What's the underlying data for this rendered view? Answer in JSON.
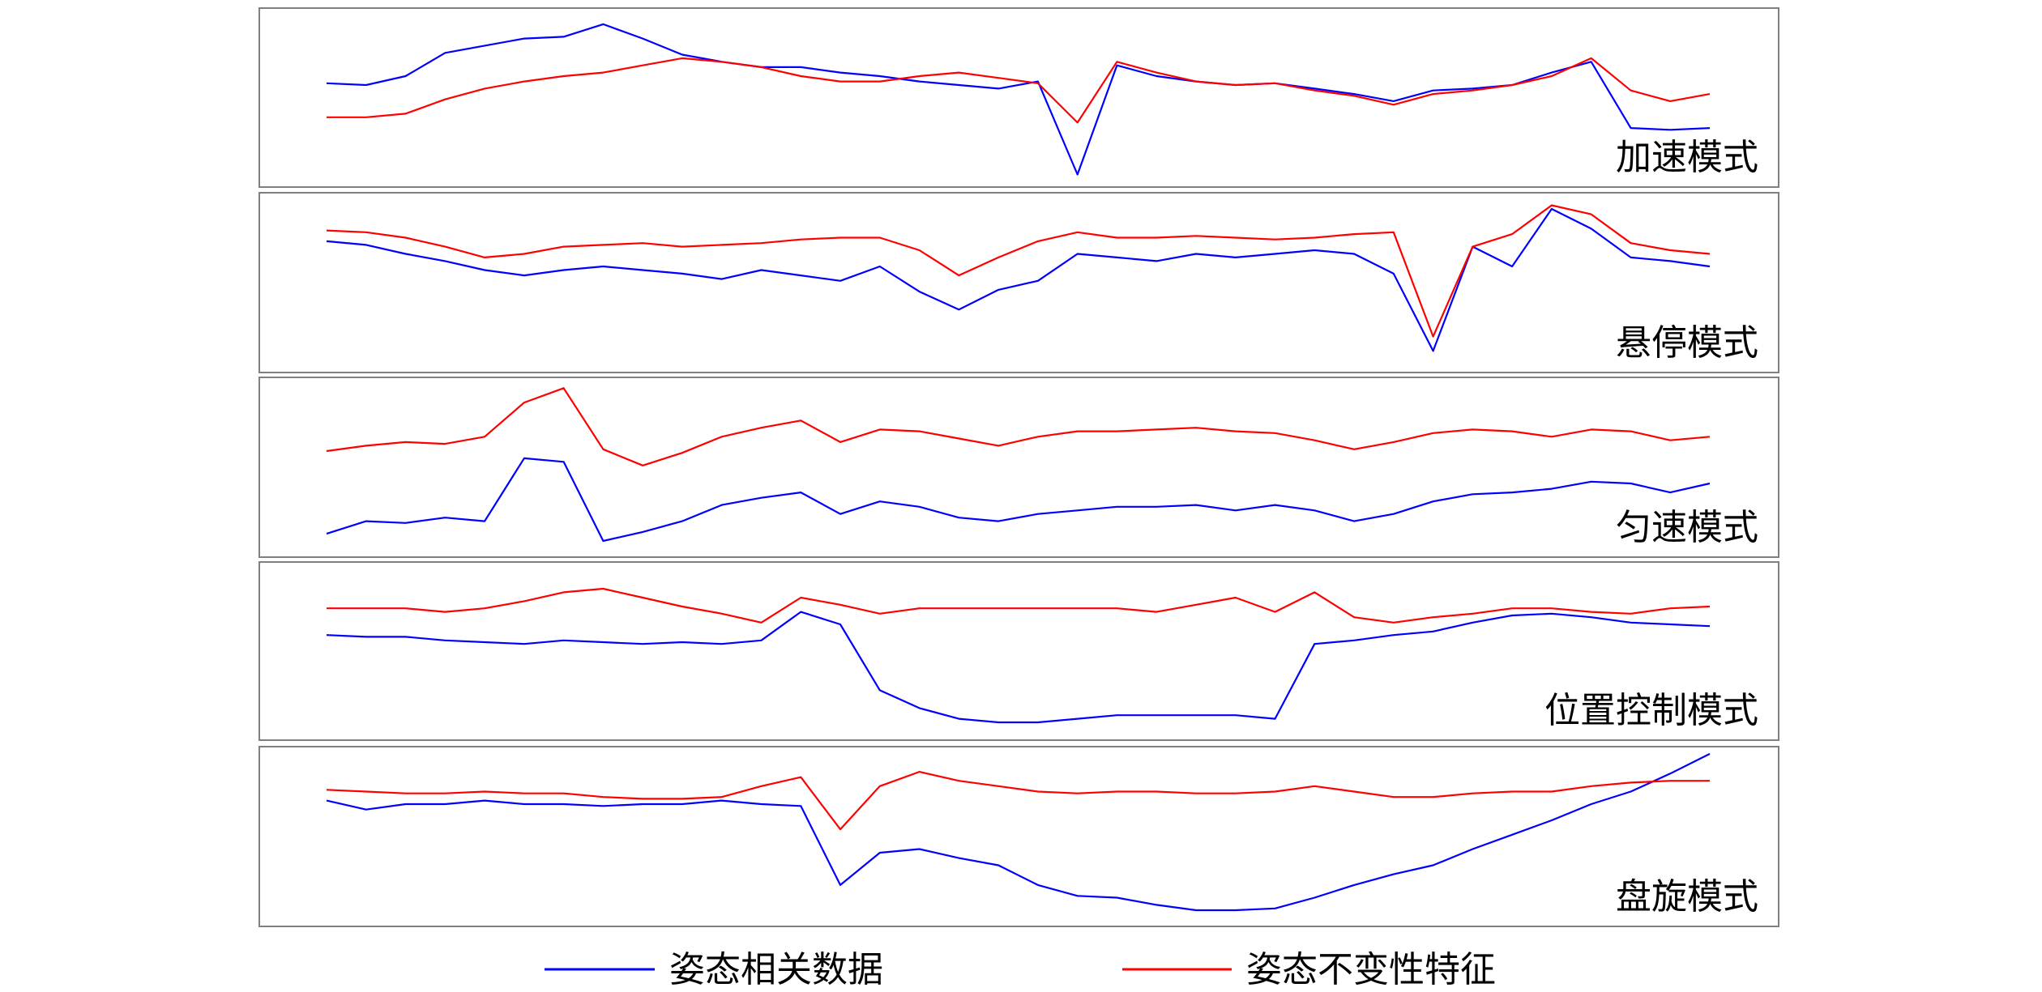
{
  "chart_data": [
    {
      "type": "line",
      "annotation": "加速模式",
      "ylim": [
        0,
        100
      ],
      "series": [
        {
          "name": "姿态相关数据",
          "color": "#0000ff",
          "values": [
            58,
            57,
            62,
            75,
            79,
            83,
            84,
            91,
            83,
            74,
            70,
            67,
            67,
            64,
            62,
            59,
            57,
            55,
            59,
            7,
            68,
            62,
            59,
            57,
            58,
            55,
            52,
            48,
            54,
            55,
            57,
            64,
            70,
            33,
            32,
            33
          ]
        },
        {
          "name": "姿态不变性特征",
          "color": "#ff0000",
          "values": [
            39,
            39,
            41,
            49,
            55,
            59,
            62,
            64,
            68,
            72,
            70,
            67,
            62,
            59,
            59,
            62,
            64,
            61,
            58,
            36,
            70,
            64,
            59,
            57,
            58,
            54,
            51,
            46,
            52,
            54,
            57,
            62,
            72,
            54,
            48,
            52
          ]
        }
      ]
    },
    {
      "type": "line",
      "annotation": "悬停模式",
      "ylim": [
        0,
        100
      ],
      "series": [
        {
          "color": "#0000ff",
          "values": [
            73,
            71,
            66,
            62,
            57,
            54,
            57,
            59,
            57,
            55,
            52,
            57,
            54,
            51,
            59,
            45,
            35,
            46,
            51,
            66,
            64,
            62,
            66,
            64,
            66,
            68,
            66,
            55,
            12,
            70,
            59,
            91,
            80,
            64,
            62,
            59
          ]
        },
        {
          "color": "#ff0000",
          "values": [
            79,
            78,
            75,
            70,
            64,
            66,
            70,
            71,
            72,
            70,
            71,
            72,
            74,
            75,
            75,
            68,
            54,
            64,
            73,
            78,
            75,
            75,
            76,
            75,
            74,
            75,
            77,
            78,
            20,
            70,
            77,
            93,
            88,
            72,
            68,
            66
          ]
        }
      ]
    },
    {
      "type": "line",
      "annotation": "匀速模式",
      "ylim": [
        0,
        100
      ],
      "series": [
        {
          "color": "#0000ff",
          "values": [
            13,
            20,
            19,
            22,
            20,
            55,
            53,
            9,
            14,
            20,
            29,
            33,
            36,
            24,
            31,
            28,
            22,
            20,
            24,
            26,
            28,
            28,
            29,
            26,
            29,
            26,
            20,
            24,
            31,
            35,
            36,
            38,
            42,
            41,
            36,
            41
          ]
        },
        {
          "color": "#ff0000",
          "values": [
            59,
            62,
            64,
            63,
            67,
            86,
            94,
            60,
            51,
            58,
            67,
            72,
            76,
            64,
            71,
            70,
            66,
            62,
            67,
            70,
            70,
            71,
            72,
            70,
            69,
            65,
            60,
            64,
            69,
            71,
            70,
            67,
            71,
            70,
            65,
            67
          ]
        }
      ]
    },
    {
      "type": "line",
      "annotation": "位置控制模式",
      "ylim": [
        0,
        100
      ],
      "series": [
        {
          "color": "#0000ff",
          "values": [
            59,
            58,
            58,
            56,
            55,
            54,
            56,
            55,
            54,
            55,
            54,
            56,
            72,
            65,
            28,
            18,
            12,
            10,
            10,
            12,
            14,
            14,
            14,
            14,
            12,
            54,
            56,
            59,
            61,
            66,
            70,
            71,
            69,
            66,
            65,
            64
          ]
        },
        {
          "color": "#ff0000",
          "values": [
            74,
            74,
            74,
            72,
            74,
            78,
            83,
            85,
            80,
            75,
            71,
            66,
            80,
            76,
            71,
            74,
            74,
            74,
            74,
            74,
            74,
            72,
            76,
            80,
            72,
            83,
            69,
            66,
            69,
            71,
            74,
            74,
            72,
            71,
            74,
            75
          ]
        }
      ]
    },
    {
      "type": "line",
      "annotation": "盘旋模式",
      "ylim": [
        0,
        100
      ],
      "series": [
        {
          "color": "#0000ff",
          "values": [
            70,
            65,
            68,
            68,
            70,
            68,
            68,
            67,
            68,
            68,
            70,
            68,
            67,
            23,
            41,
            43,
            38,
            34,
            23,
            17,
            16,
            12,
            9,
            9,
            10,
            16,
            23,
            29,
            34,
            43,
            51,
            59,
            68,
            75,
            85,
            96
          ]
        },
        {
          "color": "#ff0000",
          "values": [
            76,
            75,
            74,
            74,
            75,
            74,
            74,
            72,
            71,
            71,
            72,
            78,
            83,
            54,
            78,
            86,
            81,
            78,
            75,
            74,
            75,
            75,
            74,
            74,
            75,
            78,
            75,
            72,
            72,
            74,
            75,
            75,
            78,
            80,
            81,
            81
          ]
        }
      ]
    }
  ]
}
